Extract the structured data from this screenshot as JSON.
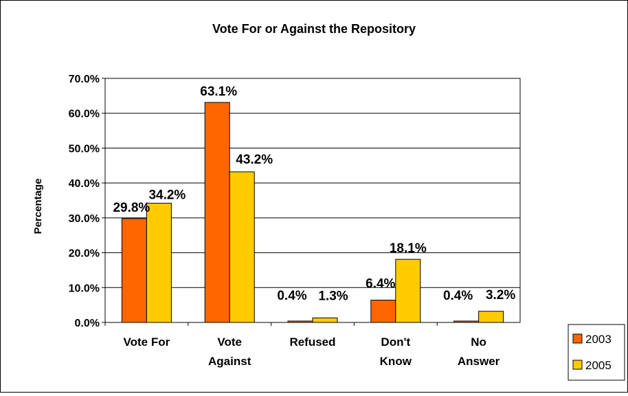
{
  "chart_data": {
    "type": "bar",
    "title": "Vote For or Against the Repository",
    "xlabel": "",
    "ylabel": "Percentage",
    "categories": [
      "Vote For",
      "Vote Against",
      "Refused",
      "Don't Know",
      "No Answer"
    ],
    "category_lines": [
      [
        "Vote For"
      ],
      [
        "Vote",
        "Against"
      ],
      [
        "Refused"
      ],
      [
        "Don't",
        "Know"
      ],
      [
        "No",
        "Answer"
      ]
    ],
    "series": [
      {
        "name": "2003",
        "color": "#ff6600",
        "values": [
          29.8,
          63.1,
          0.4,
          6.4,
          0.4
        ],
        "labels": [
          "29.8%",
          "63.1%",
          "0.4%",
          "6.4%",
          "0.4%"
        ]
      },
      {
        "name": "2005",
        "color": "#ffcc00",
        "values": [
          34.2,
          43.2,
          1.3,
          18.1,
          3.2
        ],
        "labels": [
          "34.2%",
          "43.2%",
          "1.3%",
          "18.1%",
          "3.2%"
        ]
      }
    ],
    "ylim": [
      0,
      70
    ],
    "yticks": [
      "0.0%",
      "10.0%",
      "20.0%",
      "30.0%",
      "40.0%",
      "50.0%",
      "60.0%",
      "70.0%"
    ],
    "grid": true,
    "legend": "right"
  }
}
